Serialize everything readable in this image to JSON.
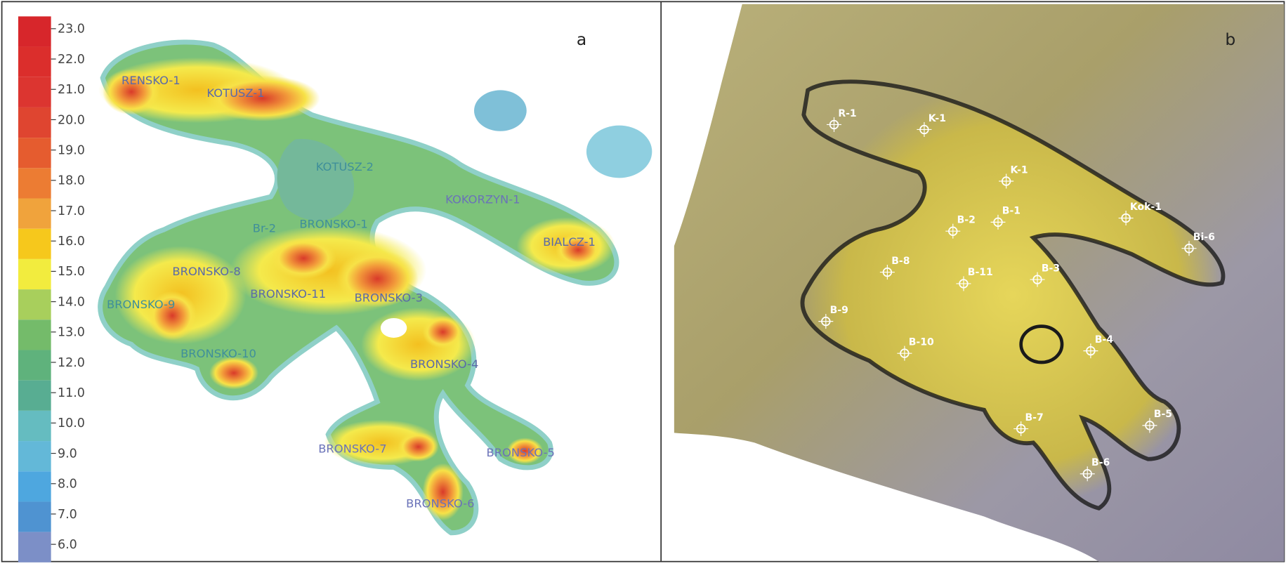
{
  "panels": [
    {
      "label": "a",
      "colorbar": {
        "ticks": [
          "23.0",
          "22.0",
          "21.0",
          "20.0",
          "19.0",
          "18.0",
          "17.0",
          "16.0",
          "15.0",
          "14.0",
          "13.0",
          "12.0",
          "11.0",
          "10.0",
          "9.0",
          "8.0",
          "7.0",
          "6.0"
        ]
      },
      "wells": [
        "RENSKO-1",
        "KOTUSZ-1",
        "KOTUSZ-2",
        "KOKORZYN-1",
        "Br-2",
        "BRONSKO-1",
        "BIALCZ-1",
        "BRONSKO-8",
        "BRONSKO-11",
        "BRONSKO-3",
        "BRONSKO-9",
        "BRONSKO-10",
        "BRONSKO-4",
        "BRONSKO-7",
        "BRONSKO-5",
        "BRONSKO-6"
      ]
    },
    {
      "label": "b",
      "wells": [
        "R-1",
        "K-1",
        "K-1",
        "Kok-1",
        "Bi-6",
        "B-2",
        "B-1",
        "B-8",
        "B-11",
        "B-3",
        "B-9",
        "B-10",
        "B-4",
        "B-7",
        "B-5",
        "B-6"
      ]
    }
  ]
}
